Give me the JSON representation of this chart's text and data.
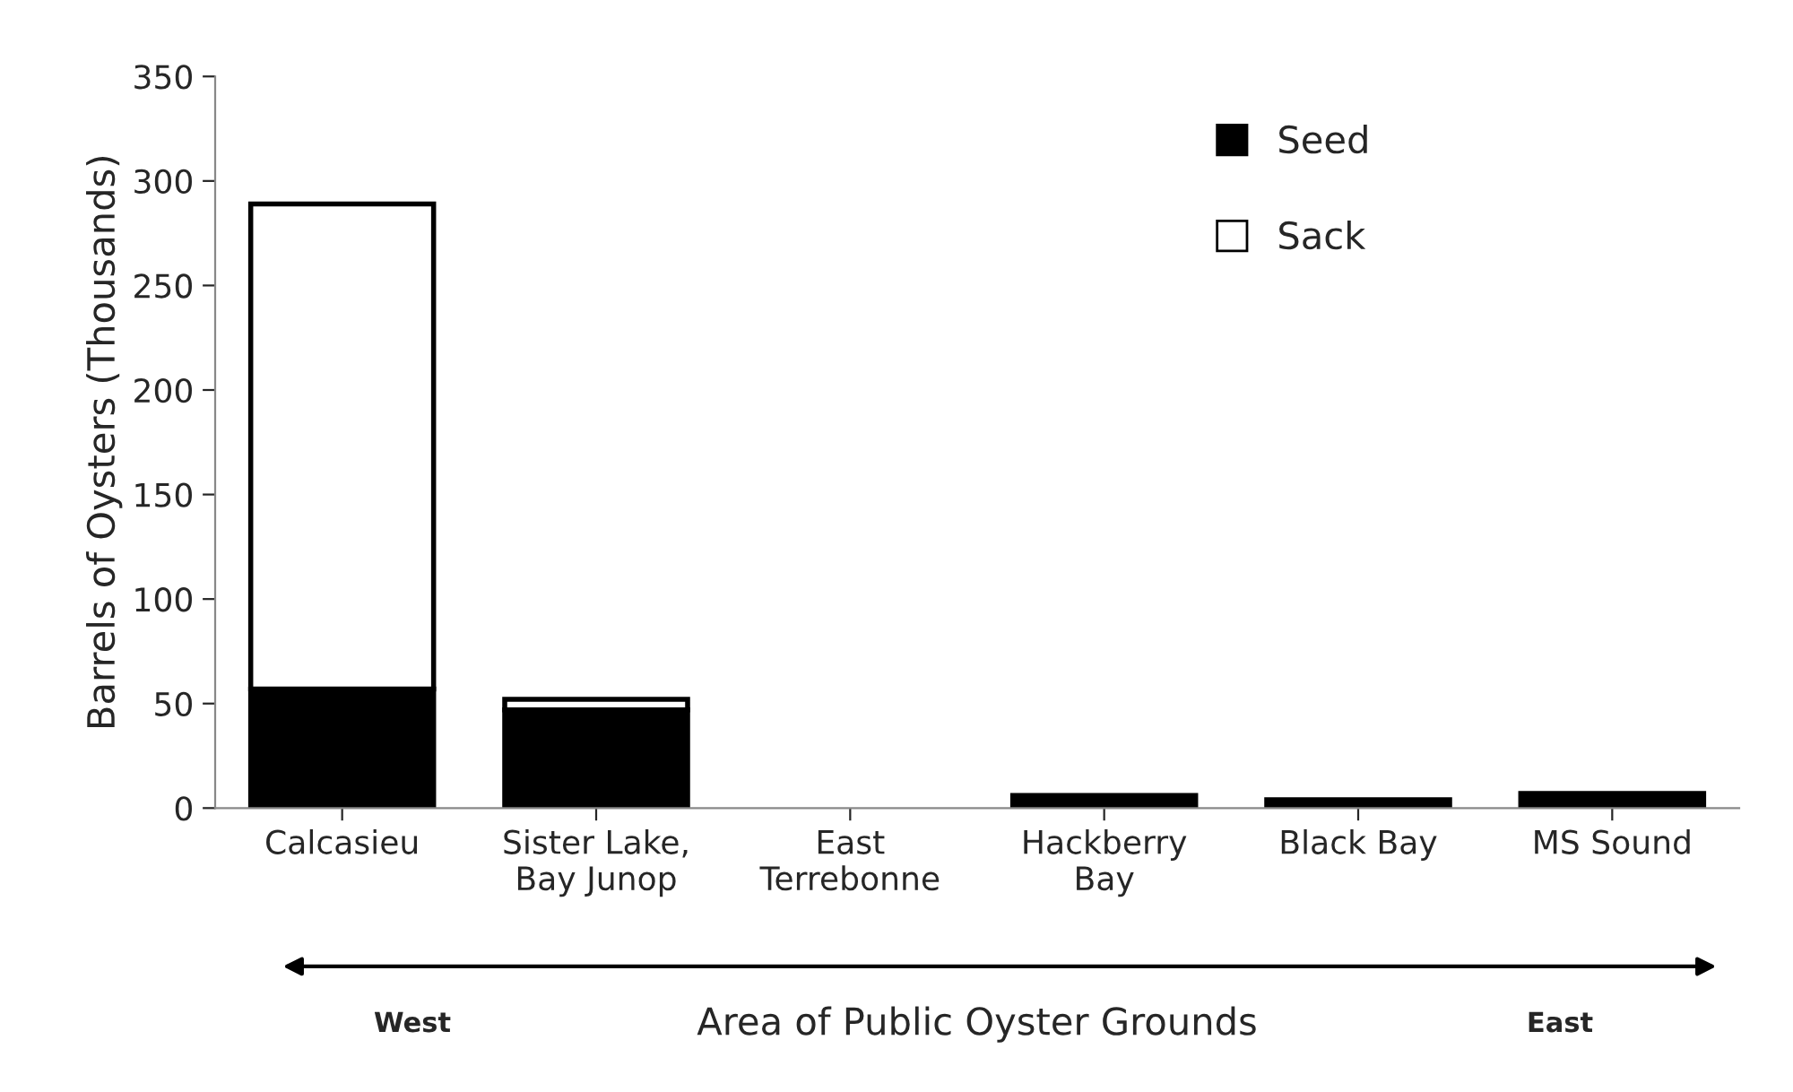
{
  "chart_data": {
    "type": "bar",
    "stacked": true,
    "xlabel": "Area of Public Oyster Grounds",
    "ylabel": "Barrels of Oysters (Thousands)",
    "categories": [
      "Calcasieu",
      "Sister Lake,\nBay Junop",
      "East\nTerrebonne",
      "Hackberry\nBay",
      "Black Bay",
      "MS Sound"
    ],
    "series": [
      {
        "name": "Seed",
        "color": "#000000",
        "values": [
          57,
          47,
          0,
          6,
          4,
          7
        ]
      },
      {
        "name": "Sack",
        "color": "#ffffff",
        "values": [
          232,
          5,
          null,
          null,
          null,
          null
        ]
      }
    ],
    "ylim": [
      0,
      350
    ],
    "yticks": [
      0,
      50,
      100,
      150,
      200,
      250,
      300,
      350
    ],
    "legend": "top right",
    "annotations": [
      "West",
      "East"
    ]
  }
}
